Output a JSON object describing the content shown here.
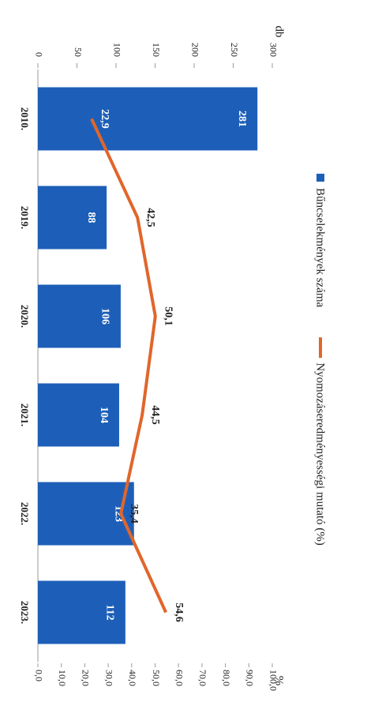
{
  "chart_data": {
    "type": "bar_line",
    "y_label": "db",
    "y2_label": "%",
    "categories": [
      "2010.",
      "2019.",
      "2020.",
      "2021.",
      "2022.",
      "2023."
    ],
    "series": [
      {
        "name": "Bűncselekmények száma",
        "type": "bar",
        "color": "#1d5fb8",
        "values": [
          281,
          88,
          106,
          104,
          123,
          112
        ]
      },
      {
        "name": "Nyomozáseredményességi mutató (%)",
        "type": "line",
        "axis": "y2",
        "color": "#e0662b",
        "values": [
          22.9,
          42.5,
          50.1,
          44.5,
          35.4,
          54.6
        ],
        "value_labels": [
          "22,9",
          "42,5",
          "50,1",
          "44,5",
          "35,4",
          "54,6"
        ]
      }
    ],
    "ylim": [
      0,
      300
    ],
    "yticks": [
      0,
      50,
      100,
      150,
      200,
      250,
      300
    ],
    "y2lim": [
      0,
      100
    ],
    "y2ticks": [
      {
        "value": 0,
        "label": "0,0"
      },
      {
        "value": 10,
        "label": "10,0"
      },
      {
        "value": 20,
        "label": "20,0"
      },
      {
        "value": 30,
        "label": "30,0"
      },
      {
        "value": 40,
        "label": "40,0"
      },
      {
        "value": 50,
        "label": "50,0"
      },
      {
        "value": 60,
        "label": "60,0"
      },
      {
        "value": 70,
        "label": "70,0"
      },
      {
        "value": 80,
        "label": "80,0"
      },
      {
        "value": 90,
        "label": "90,0"
      },
      {
        "value": 100,
        "label": "100,0"
      }
    ]
  }
}
